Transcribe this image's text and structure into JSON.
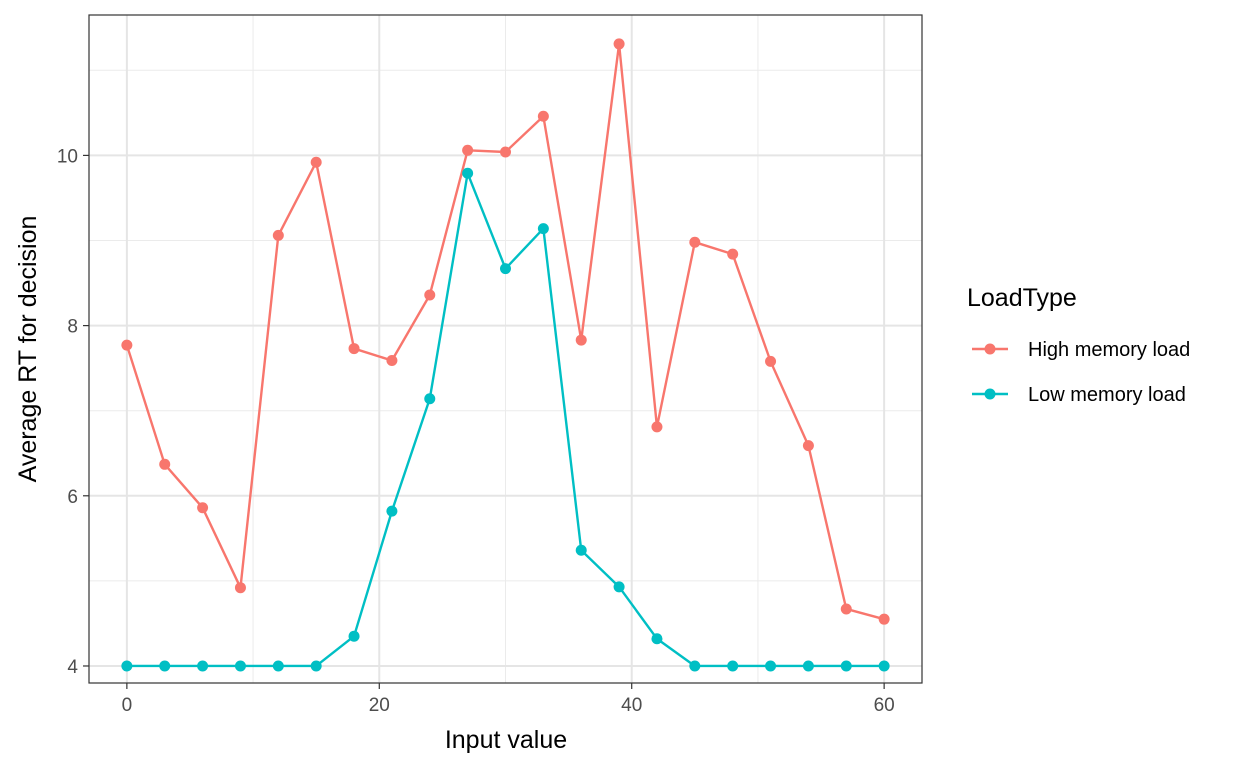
{
  "chart_data": {
    "type": "line",
    "xlabel": "Input value",
    "ylabel": "Average RT for decision",
    "xlim": [
      -3,
      63
    ],
    "ylim": [
      3.8,
      11.65
    ],
    "x_ticks": [
      0,
      20,
      40,
      60
    ],
    "y_ticks": [
      4,
      6,
      8,
      10
    ],
    "grid": true,
    "legend": {
      "title": "LoadType",
      "placement": "right"
    },
    "x": [
      0,
      3,
      6,
      9,
      12,
      15,
      18,
      21,
      24,
      27,
      30,
      33,
      36,
      39,
      42,
      45,
      48,
      51,
      54,
      57,
      60
    ],
    "series": [
      {
        "name": "High memory load",
        "color": "#F8766D",
        "values": [
          7.77,
          6.37,
          5.86,
          4.92,
          9.06,
          9.92,
          7.73,
          7.59,
          8.36,
          10.06,
          10.04,
          10.46,
          7.83,
          11.31,
          6.81,
          8.98,
          8.84,
          7.58,
          6.59,
          4.67,
          4.55
        ]
      },
      {
        "name": "Low memory load",
        "color": "#00BFC4",
        "values": [
          4.0,
          4.0,
          4.0,
          4.0,
          4.0,
          4.0,
          4.35,
          5.82,
          7.14,
          9.79,
          8.67,
          9.14,
          5.36,
          4.93,
          4.32,
          4.0,
          4.0,
          4.0,
          4.0,
          4.0,
          4.0
        ]
      }
    ]
  }
}
